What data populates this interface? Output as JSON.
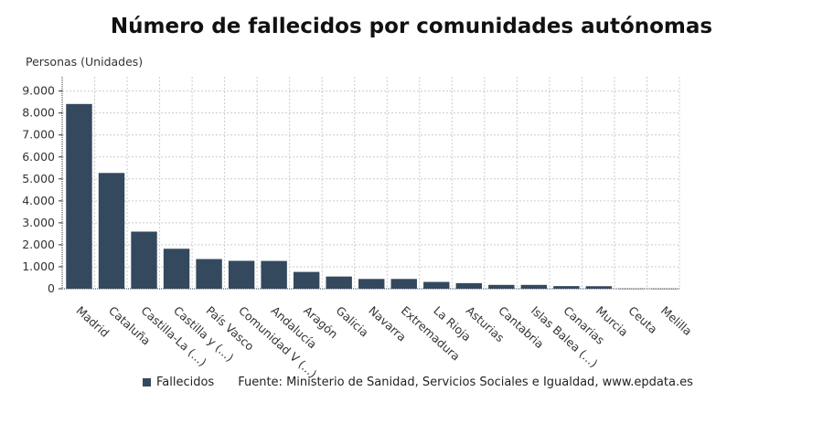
{
  "chart_data": {
    "type": "bar",
    "title": "Número de fallecidos por comunidades autónomas",
    "ylabel": "Personas (Unidades)",
    "xlabel": "",
    "categories": [
      "Madrid",
      "Cataluña",
      "Castilla-La (...)",
      "Castilla y (...)",
      "País Vasco",
      "Comunidad V (...)",
      "Andalucía",
      "Aragón",
      "Galicia",
      "Navarra",
      "Extremadura",
      "La Rioja",
      "Asturias",
      "Cantabria",
      "Islas Balea (...)",
      "Canarias",
      "Murcia",
      "Ceuta",
      "Melilla"
    ],
    "series": [
      {
        "name": "Fallecidos",
        "values": [
          8410,
          5270,
          2600,
          1820,
          1350,
          1270,
          1265,
          765,
          555,
          445,
          445,
          310,
          255,
          175,
          175,
          120,
          115,
          4,
          2
        ]
      }
    ],
    "yticks": [
      "0",
      "1.000",
      "2.000",
      "3.000",
      "4.000",
      "5.000",
      "6.000",
      "7.000",
      "8.000",
      "9.000"
    ],
    "ylim": [
      0,
      9650
    ],
    "grid": true,
    "legend_position": "bottom",
    "color": "#34495e"
  },
  "source": "Fuente: Ministerio de Sanidad, Servicios Sociales e Igualdad, www.epdata.es"
}
